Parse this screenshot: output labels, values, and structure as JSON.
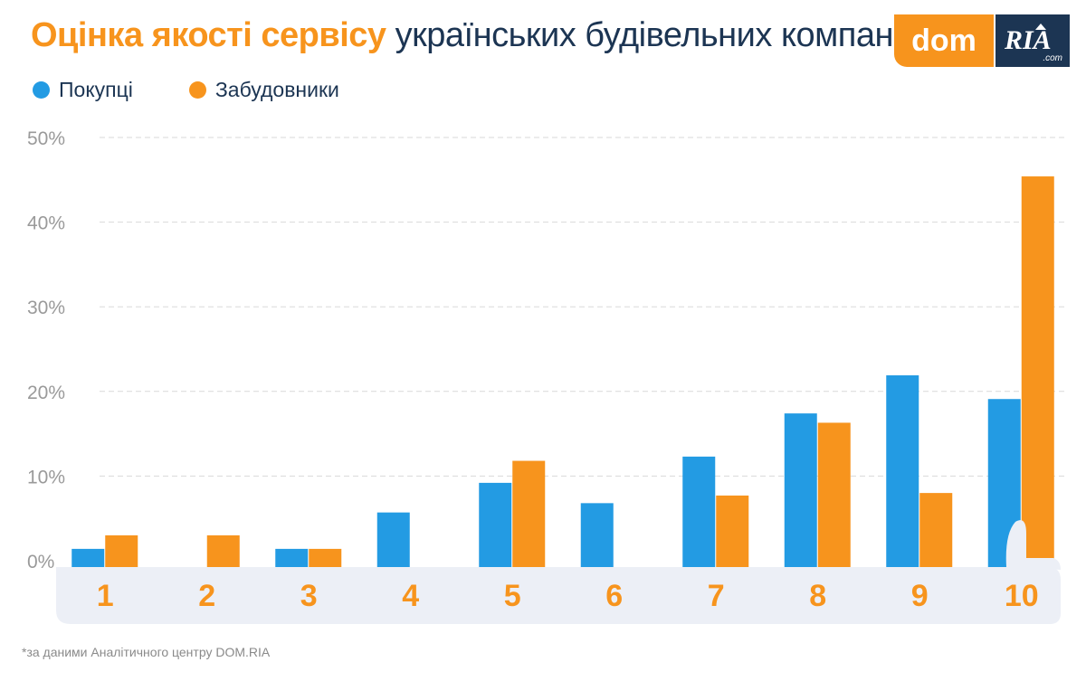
{
  "title": {
    "accent": "Оцінка якості сервісу",
    "rest": "українських будівельних компаній"
  },
  "logo": {
    "dom": "dom",
    "ria": "RIA",
    "com": ".com"
  },
  "footnote": "*за даними Аналітичного центру DOM.RIA",
  "colors": {
    "buyers": "#239be3",
    "developers": "#f7941d",
    "grid": "#d9d9d9",
    "axis_label": "#9a9a9a",
    "category_label": "#f7941d",
    "base": "#eceff6",
    "title_dark": "#1c3553",
    "logo_dark": "#1c3553"
  },
  "chart_data": {
    "type": "bar",
    "categories": [
      "1",
      "2",
      "3",
      "4",
      "5",
      "6",
      "7",
      "8",
      "9",
      "10"
    ],
    "series": [
      {
        "name": "Покупці",
        "values": [
          1.4,
          0,
          1.4,
          5.7,
          9.2,
          6.8,
          12.3,
          17.4,
          21.9,
          19.1
        ]
      },
      {
        "name": "Забудовники",
        "values": [
          3.0,
          3.0,
          1.4,
          0,
          11.8,
          0,
          7.7,
          16.3,
          8.0,
          45.4
        ]
      }
    ],
    "ylim": [
      0,
      50
    ],
    "yticks": [
      "0%",
      "10%",
      "20%",
      "30%",
      "40%",
      "50%"
    ],
    "title": "Оцінка якості сервісу українських будівельних компаній",
    "xlabel": "",
    "ylabel": "",
    "grid": true,
    "legend": "top-left"
  }
}
